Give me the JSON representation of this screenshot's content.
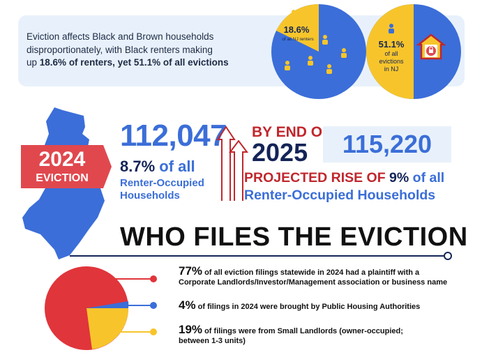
{
  "intro": {
    "line1": "Eviction affects Black and Brown households",
    "line2": "disproportionately, with Black renters making",
    "line3_prefix": "up ",
    "line3_pct1": "18.6%",
    "line3_mid": " of renters, yet ",
    "line3_pct2": "51.1%",
    "line3_suffix": " of all evictions"
  },
  "pie_renters": {
    "value": "18.6%",
    "label": "of all NJ renters",
    "share": 0.186,
    "color_highlight": "#f7c52b",
    "color_base": "#3b6ed8"
  },
  "pie_evictions": {
    "value": "51.1%",
    "label1": "of all",
    "label2": "evictions",
    "label3": "in NJ",
    "share": 0.511,
    "color_highlight": "#f7c52b",
    "color_base": "#3b6ed8"
  },
  "stats_2024": {
    "badge_year": "2024",
    "badge_label": "EVICTION",
    "count": "112,047",
    "pct": "8.7%",
    "pct_text": " of all",
    "renter_line1": "Renter-Occupied",
    "renter_line2": "Households"
  },
  "projection": {
    "by_end_of": "BY END OF",
    "year": "2025",
    "count": "115,220",
    "rise_prefix": "PROJECTED RISE OF ",
    "rise_pct": "9%",
    "rise_suffix": " of all",
    "line2": "Renter-Occupied Households"
  },
  "who_files": {
    "heading": "WHO FILES THE EVICTION",
    "items": [
      {
        "pct": "77%",
        "text": " of all eviction filings statewide in 2024 had a plaintiff with a Corporate Landlords/Investor/Management association or business name",
        "color": "#e0353b"
      },
      {
        "pct": "4%",
        "text": " of filings in 2024 were brought by Public Housing Authorities",
        "color": "#3b6ed8"
      },
      {
        "pct": "19%",
        "text": " of filings were from Small Landlords (owner-occupied; between 1-3 units)",
        "color": "#f7c52b"
      }
    ]
  },
  "colors": {
    "navy": "#142457",
    "blue": "#3b6ed8",
    "red": "#c0272d",
    "yellow": "#f7c52b",
    "nj_map": "#3b6ed8"
  }
}
